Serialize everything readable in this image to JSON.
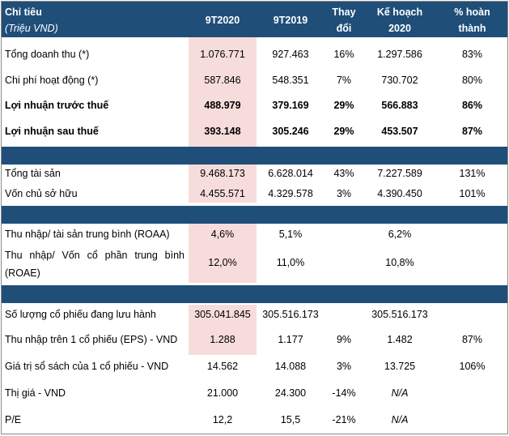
{
  "header": {
    "col1_line1": "Chỉ tiêu",
    "col1_line2": "(Triệu VND)",
    "col2": "9T2020",
    "col3": "9T2019",
    "col4_line1": "Thay",
    "col4_line2": "đổi",
    "col5_line1": "Kế hoạch",
    "col5_line2": "2020",
    "col6_line1": "% hoàn",
    "col6_line2": "thành"
  },
  "sec1": [
    {
      "label": "Tổng doanh thu (*)",
      "v2020": "1.076.771",
      "v2019": "927.463",
      "change": "16%",
      "plan": "1.297.586",
      "pct": "83%"
    },
    {
      "label": "Chi phí hoạt động (*)",
      "v2020": "587.846",
      "v2019": "548.351",
      "change": "7%",
      "plan": "730.702",
      "pct": "80%"
    },
    {
      "label": "Lợi nhuận trước thuế",
      "v2020": "488.979",
      "v2019": "379.169",
      "change": "29%",
      "plan": "566.883",
      "pct": "86%"
    },
    {
      "label": "Lợi nhuận sau thuế",
      "v2020": "393.148",
      "v2019": "305.246",
      "change": "29%",
      "plan": "453.507",
      "pct": "87%"
    }
  ],
  "sec2": [
    {
      "label": "Tổng tài sản",
      "v2020": "9.468.173",
      "v2019": "6.628.014",
      "change": "43%",
      "plan": "7.227.589",
      "pct": "131%"
    },
    {
      "label": "Vốn chủ sở hữu",
      "v2020": "4.455.571",
      "v2019": "4.329.578",
      "change": "3%",
      "plan": "4.390.450",
      "pct": "101%"
    }
  ],
  "sec3": [
    {
      "label": "Thu nhập/ tài sản trung bình (ROAA)",
      "v2020": "4,6%",
      "v2019": "5,1%",
      "plan": "6,2%"
    },
    {
      "label": "Thu nhập/ Vốn cổ phần trung bình (ROAE)",
      "v2020": "12,0%",
      "v2019": "11,0%",
      "plan": "10,8%"
    }
  ],
  "sec4": [
    {
      "label": "Số lượng cổ phiếu đang lưu hành",
      "v2020": "305.041.845",
      "v2019": "305.516.173",
      "change": "",
      "plan": "305.516.173",
      "pct": ""
    },
    {
      "label": "Thu nhập trên 1 cổ phiếu (EPS) - VND",
      "v2020": "1.288",
      "v2019": "1.177",
      "change": "9%",
      "plan": "1.482",
      "pct": "87%"
    },
    {
      "label": "Giá trị sổ sách của 1 cổ phiếu - VND",
      "v2020": "14.562",
      "v2019": "14.088",
      "change": "3%",
      "plan": "13.725",
      "pct": "106%"
    },
    {
      "label": "Thị giá - VND",
      "v2020": "21.000",
      "v2019": "24.300",
      "change": "-14%",
      "plan": "N/A",
      "pct": ""
    },
    {
      "label": "P/E",
      "v2020": "12,2",
      "v2019": "15,5",
      "change": "-21%",
      "plan": "N/A",
      "pct": ""
    }
  ]
}
